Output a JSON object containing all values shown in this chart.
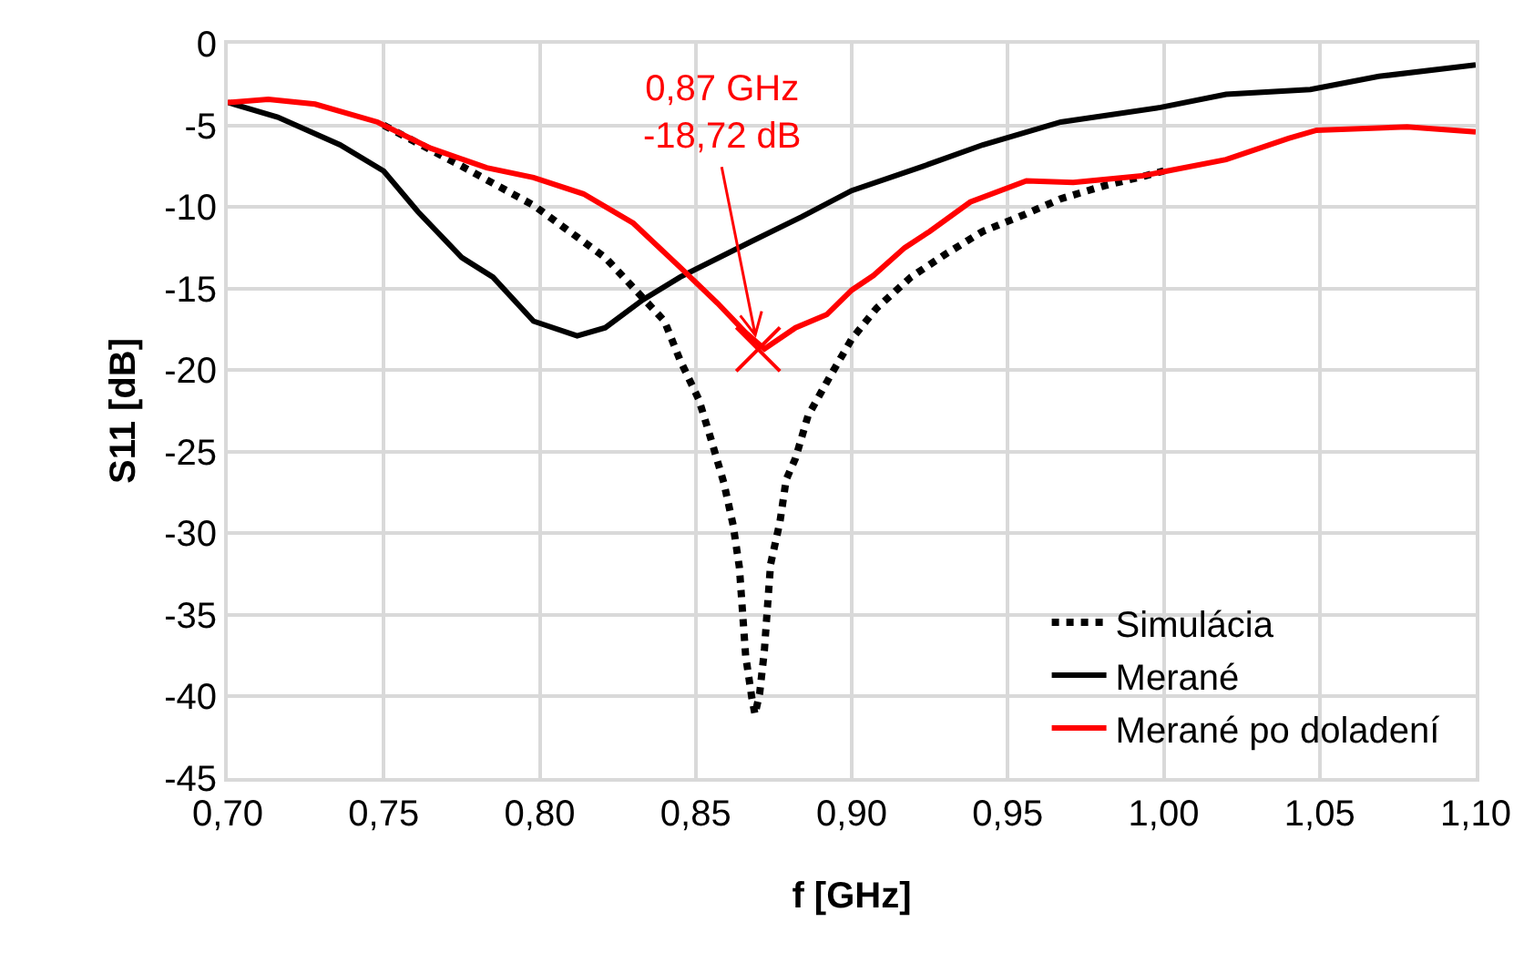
{
  "chart_data": {
    "type": "line",
    "xlabel": "f [GHz]",
    "ylabel": "S11 [dB]",
    "xlim": [
      0.7,
      1.1
    ],
    "ylim": [
      -45,
      0
    ],
    "xticks": [
      {
        "value": 0.7,
        "label": "0,70"
      },
      {
        "value": 0.75,
        "label": "0,75"
      },
      {
        "value": 0.8,
        "label": "0,80"
      },
      {
        "value": 0.85,
        "label": "0,85"
      },
      {
        "value": 0.9,
        "label": "0,90"
      },
      {
        "value": 0.95,
        "label": "0,95"
      },
      {
        "value": 1.0,
        "label": "1,00"
      },
      {
        "value": 1.05,
        "label": "1,05"
      },
      {
        "value": 1.1,
        "label": "1,10"
      }
    ],
    "yticks": [
      0,
      -5,
      -10,
      -15,
      -20,
      -25,
      -30,
      -35,
      -40,
      -45
    ],
    "grid": true,
    "legend": "bottom right",
    "series": [
      {
        "name": "Simulácia",
        "color": "#000000",
        "line_style": "dotted",
        "marker": "none",
        "x": [
          0.75,
          0.774,
          0.798,
          0.821,
          0.84,
          0.845,
          0.851,
          0.855,
          0.859,
          0.862,
          0.864,
          0.865,
          0.866,
          0.868,
          0.869,
          0.8705,
          0.872,
          0.873,
          0.874,
          0.877,
          0.879,
          0.882,
          0.886,
          0.893,
          0.9,
          0.908,
          0.919,
          0.93,
          0.942,
          0.955,
          0.967,
          0.981,
          0.994,
          1.0
        ],
        "values": [
          -5.0,
          -7.4,
          -9.9,
          -13.1,
          -17.0,
          -19.4,
          -21.8,
          -24.3,
          -26.9,
          -29.5,
          -32.1,
          -34.8,
          -37.5,
          -40.1,
          -41.1,
          -39.8,
          -37.2,
          -34.5,
          -31.9,
          -29.3,
          -26.7,
          -25.4,
          -22.8,
          -20.4,
          -18.1,
          -16.2,
          -14.3,
          -12.9,
          -11.5,
          -10.5,
          -9.5,
          -8.7,
          -8.1,
          -7.8
        ]
      },
      {
        "name": "Merané",
        "color": "#000000",
        "line_style": "solid",
        "marker": "none",
        "x": [
          0.7,
          0.716,
          0.736,
          0.75,
          0.761,
          0.775,
          0.785,
          0.798,
          0.812,
          0.821,
          0.833,
          0.845,
          0.868,
          0.884,
          0.9,
          0.923,
          0.942,
          0.967,
          0.999,
          1.02,
          1.047,
          1.069,
          1.1
        ],
        "values": [
          -3.6,
          -4.5,
          -6.2,
          -7.8,
          -10.3,
          -13.1,
          -14.3,
          -17.0,
          -17.9,
          -17.4,
          -15.7,
          -14.3,
          -12.1,
          -10.6,
          -9.0,
          -7.5,
          -6.2,
          -4.8,
          -3.9,
          -3.1,
          -2.8,
          -2.0,
          -1.3
        ]
      },
      {
        "name": "Merané po doladení",
        "color": "#ff0000",
        "line_style": "solid",
        "marker": "none",
        "x": [
          0.7,
          0.713,
          0.728,
          0.748,
          0.765,
          0.783,
          0.798,
          0.814,
          0.83,
          0.845,
          0.857,
          0.866,
          0.872,
          0.882,
          0.892,
          0.9,
          0.907,
          0.917,
          0.925,
          0.938,
          0.956,
          0.971,
          0.993,
          1.02,
          1.04,
          1.049,
          1.078,
          1.1
        ],
        "values": [
          -3.6,
          -3.4,
          -3.7,
          -4.8,
          -6.4,
          -7.6,
          -8.2,
          -9.2,
          -11.0,
          -13.7,
          -15.9,
          -17.7,
          -18.7,
          -17.4,
          -16.6,
          -15.1,
          -14.2,
          -12.5,
          -11.5,
          -9.7,
          -8.4,
          -8.5,
          -8.1,
          -7.1,
          -5.8,
          -5.3,
          -5.1,
          -5.4
        ]
      },
      {
        "type": "scatter",
        "color": "#ff0000",
        "marker": "cross",
        "x": [
          0.87
        ],
        "values": [
          -18.72
        ]
      }
    ],
    "annotations": [
      {
        "text": "0,87 GHz\n-18,72 dB",
        "x": 0.87,
        "y": -18.72
      }
    ]
  }
}
